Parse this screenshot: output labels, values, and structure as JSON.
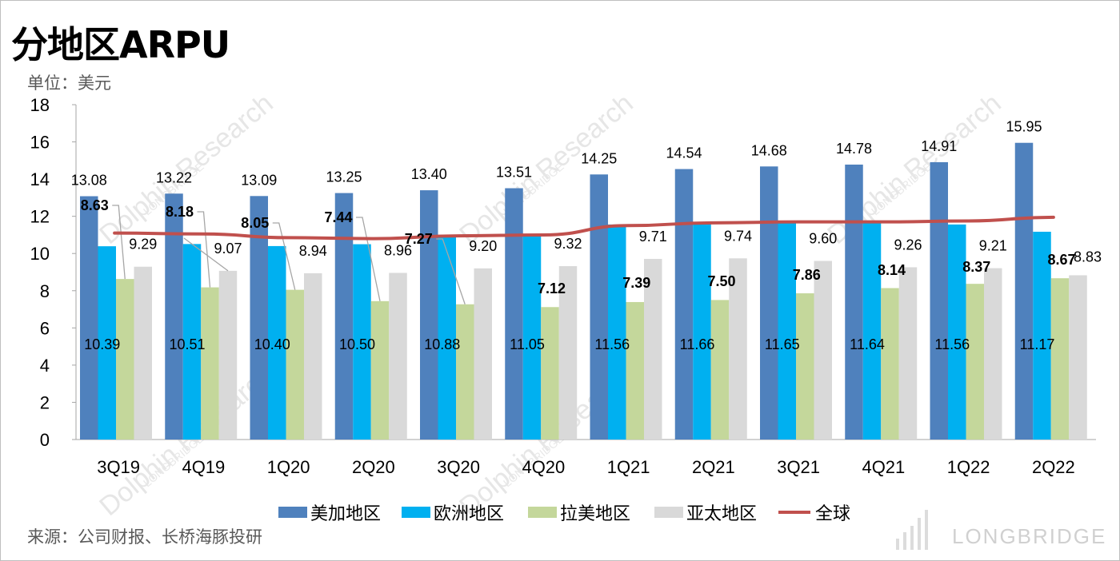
{
  "title": "分地区ARPU",
  "unit_label": "单位：美元",
  "source_label": "来源：公司财报、长桥海豚投研",
  "watermark": {
    "brand": "LONGBRIDGE",
    "sub": "Dolphin Research"
  },
  "chart_data": {
    "type": "bar",
    "categories": [
      "3Q19",
      "4Q19",
      "1Q20",
      "2Q20",
      "3Q20",
      "4Q20",
      "1Q21",
      "2Q21",
      "3Q21",
      "4Q21",
      "1Q22",
      "2Q22"
    ],
    "ylim": [
      0,
      18
    ],
    "yticks": [
      "0",
      "2",
      "4",
      "6",
      "8",
      "10",
      "12",
      "14",
      "16",
      "18"
    ],
    "series": [
      {
        "name": "美加地区",
        "color": "#4f81bd",
        "values": [
          13.08,
          13.22,
          13.09,
          13.25,
          13.4,
          13.51,
          14.25,
          14.54,
          14.68,
          14.78,
          14.91,
          15.95
        ],
        "labels": [
          "13.08",
          "13.22",
          "13.09",
          "13.25",
          "13.40",
          "13.51",
          "14.25",
          "14.54",
          "14.68",
          "14.78",
          "14.91",
          "15.95"
        ]
      },
      {
        "name": "欧洲地区",
        "color": "#00b0f0",
        "values": [
          10.39,
          10.51,
          10.4,
          10.5,
          10.88,
          11.05,
          11.56,
          11.66,
          11.65,
          11.64,
          11.56,
          11.17
        ],
        "labels": [
          "10.39",
          "10.51",
          "10.40",
          "10.50",
          "10.88",
          "11.05",
          "11.56",
          "11.66",
          "11.65",
          "11.64",
          "11.56",
          "11.17"
        ]
      },
      {
        "name": "拉美地区",
        "color": "#c4d79b",
        "values": [
          8.63,
          8.18,
          8.05,
          7.44,
          7.27,
          7.12,
          7.39,
          7.5,
          7.86,
          8.14,
          8.37,
          8.67
        ],
        "labels": [
          "8.63",
          "8.18",
          "8.05",
          "7.44",
          "7.27",
          "7.12",
          "7.39",
          "7.50",
          "7.86",
          "8.14",
          "8.37",
          "8.67"
        ]
      },
      {
        "name": "亚太地区",
        "color": "#d9d9d9",
        "values": [
          9.29,
          9.07,
          8.94,
          8.96,
          9.2,
          9.32,
          9.71,
          9.74,
          9.6,
          9.26,
          9.21,
          8.83
        ],
        "labels": [
          "9.29",
          "9.07",
          "8.94",
          "8.96",
          "9.20",
          "9.32",
          "9.71",
          "9.74",
          "9.60",
          "9.26",
          "9.21",
          "8.83"
        ]
      },
      {
        "name": "全球",
        "color": "#c0504d",
        "type": "line",
        "values": [
          11.1,
          11.05,
          10.85,
          10.8,
          10.95,
          11.0,
          11.5,
          11.65,
          11.7,
          11.7,
          11.75,
          11.95
        ]
      }
    ],
    "legend_position": "bottom",
    "grid": false
  }
}
